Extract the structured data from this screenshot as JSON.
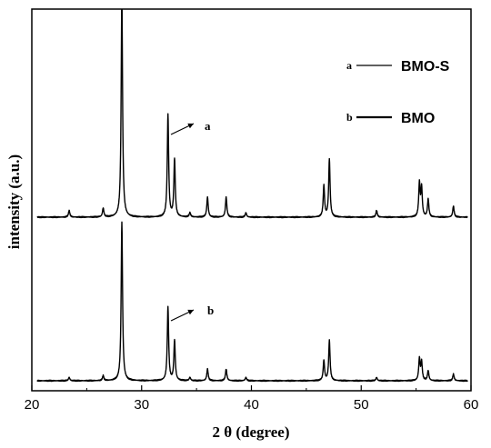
{
  "chart_data": {
    "type": "line",
    "xlabel": "2 θ (degree)",
    "ylabel": "intensity (a.u.)",
    "xlim": [
      20,
      60
    ],
    "x_ticks": [
      "20",
      "30",
      "40",
      "50",
      "60"
    ],
    "grid": false,
    "legend_position": "top-right",
    "legend": [
      {
        "letter": "a",
        "name": "BMO-S"
      },
      {
        "letter": "b",
        "name": "BMO"
      }
    ],
    "series": [
      {
        "name": "BMO-S",
        "label": "a",
        "peaks": [
          {
            "x": 23.4,
            "y": 3
          },
          {
            "x": 26.5,
            "y": 4
          },
          {
            "x": 28.2,
            "y": 100
          },
          {
            "x": 32.4,
            "y": 46
          },
          {
            "x": 33.0,
            "y": 26
          },
          {
            "x": 34.4,
            "y": 2
          },
          {
            "x": 36.0,
            "y": 9
          },
          {
            "x": 37.7,
            "y": 9
          },
          {
            "x": 39.5,
            "y": 2
          },
          {
            "x": 46.6,
            "y": 14
          },
          {
            "x": 47.1,
            "y": 26
          },
          {
            "x": 51.4,
            "y": 3
          },
          {
            "x": 55.3,
            "y": 15
          },
          {
            "x": 55.5,
            "y": 13
          },
          {
            "x": 56.1,
            "y": 8
          },
          {
            "x": 58.4,
            "y": 5
          }
        ]
      },
      {
        "name": "BMO",
        "label": "b",
        "peaks": [
          {
            "x": 23.4,
            "y": 2
          },
          {
            "x": 26.5,
            "y": 3
          },
          {
            "x": 28.2,
            "y": 95
          },
          {
            "x": 32.4,
            "y": 44
          },
          {
            "x": 33.0,
            "y": 24
          },
          {
            "x": 34.4,
            "y": 2
          },
          {
            "x": 36.0,
            "y": 7
          },
          {
            "x": 37.7,
            "y": 7
          },
          {
            "x": 39.5,
            "y": 2
          },
          {
            "x": 46.6,
            "y": 12
          },
          {
            "x": 47.1,
            "y": 24
          },
          {
            "x": 51.4,
            "y": 2
          },
          {
            "x": 55.3,
            "y": 13
          },
          {
            "x": 55.5,
            "y": 11
          },
          {
            "x": 56.1,
            "y": 6
          },
          {
            "x": 58.4,
            "y": 4
          }
        ]
      }
    ],
    "annotations": [
      {
        "text": "a",
        "series": "BMO-S",
        "x": 32.4
      },
      {
        "text": "b",
        "series": "BMO",
        "x": 32.4
      }
    ]
  }
}
